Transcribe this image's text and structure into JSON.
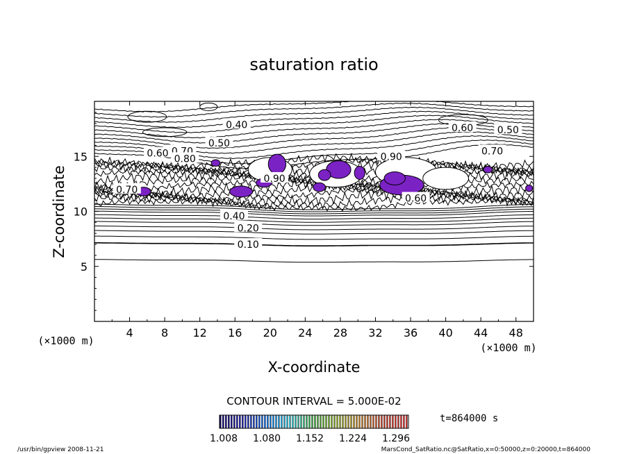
{
  "chart_data": {
    "type": "contour",
    "title": "saturation ratio",
    "xlabel": "X-coordinate",
    "ylabel": "Z-coordinate",
    "x_unit": "(×1000 m)",
    "y_unit": "(×1000 m)",
    "xlim": [
      0,
      50
    ],
    "ylim": [
      0,
      20
    ],
    "x_ticks": [
      4,
      8,
      12,
      16,
      20,
      24,
      28,
      32,
      36,
      40,
      44,
      48
    ],
    "y_ticks": [
      5,
      10,
      15
    ],
    "contour_labels": [
      {
        "text": "0.10",
        "x": 17.5,
        "y": 7.0
      },
      {
        "text": "0.20",
        "x": 17.5,
        "y": 8.5
      },
      {
        "text": "0.40",
        "x": 15.9,
        "y": 9.6
      },
      {
        "text": "0.40",
        "x": 16.2,
        "y": 17.9
      },
      {
        "text": "0.50",
        "x": 14.2,
        "y": 16.2
      },
      {
        "text": "0.60",
        "x": 41.9,
        "y": 17.6
      },
      {
        "text": "0.50",
        "x": 47.1,
        "y": 17.4
      },
      {
        "text": "0.60",
        "x": 7.2,
        "y": 15.3
      },
      {
        "text": "0.70",
        "x": 10.0,
        "y": 15.5
      },
      {
        "text": "0.80",
        "x": 10.3,
        "y": 14.8
      },
      {
        "text": "0.90",
        "x": 33.8,
        "y": 15.0
      },
      {
        "text": "0.70",
        "x": 45.3,
        "y": 15.5
      },
      {
        "text": "0.90",
        "x": 20.5,
        "y": 13.0
      },
      {
        "text": "0.60",
        "x": 36.6,
        "y": 11.2
      },
      {
        "text": "0.70",
        "x": 3.7,
        "y": 12.0
      }
    ],
    "contour_interval": "CONTOUR INTERVAL = 5.000E-02",
    "colorbar": {
      "ticks": [
        "1.008",
        "1.080",
        "1.152",
        "1.224",
        "1.296"
      ],
      "colors": [
        "#1a1166",
        "#2a2a9e",
        "#1e6fcf",
        "#3ab8c8",
        "#4aa34a",
        "#8fa83a",
        "#b8843a",
        "#b54a3a",
        "#c83a3a"
      ]
    },
    "fill_color": "#7b22c4",
    "time_label": "t=864000 s",
    "footer_left": "/usr/bin/gpview   2008-11-21",
    "footer_right": "MarsCond_SatRatio.nc@SatRatio,x=0:50000,z=0:20000,t=864000"
  }
}
